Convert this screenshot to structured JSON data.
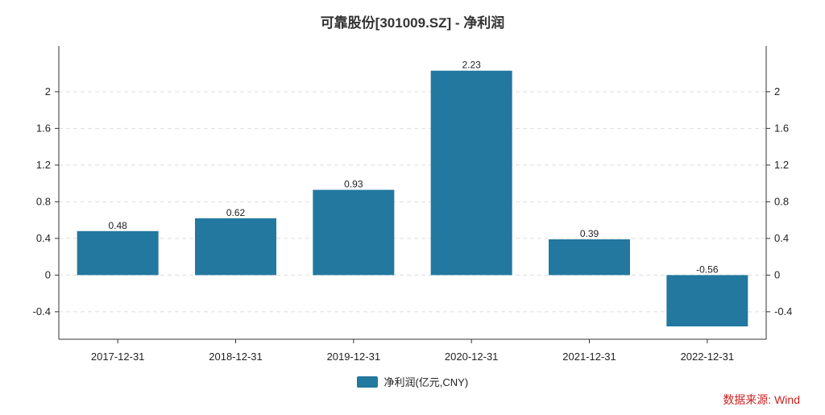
{
  "title": "可靠股份[301009.SZ] - 净利润",
  "source": "数据来源: Wind",
  "colors": {
    "bar": "#22789f",
    "grid": "#dddddd",
    "axis": "#333333",
    "source": "#cc1f1f"
  },
  "chart_data": {
    "type": "bar",
    "categories": [
      "2017-12-31",
      "2018-12-31",
      "2019-12-31",
      "2020-12-31",
      "2021-12-31",
      "2022-12-31"
    ],
    "series": [
      {
        "name": "净利润(亿元,CNY)",
        "values": [
          0.48,
          0.62,
          0.93,
          2.23,
          0.39,
          -0.56
        ]
      }
    ],
    "ylim": [
      -0.7,
      2.5
    ],
    "yticks": [
      -0.4,
      0,
      0.4,
      0.8,
      1.2,
      1.6,
      2
    ],
    "ytick_labels": [
      "-0.4",
      "0",
      "0.4",
      "0.8",
      "1.2",
      "1.6",
      "2"
    ],
    "data_labels": [
      "0.48",
      "0.62",
      "0.93",
      "2.23",
      "0.39",
      "-0.56"
    ],
    "grid": true,
    "dual_y_axis": true,
    "legend_position": "bottom"
  }
}
